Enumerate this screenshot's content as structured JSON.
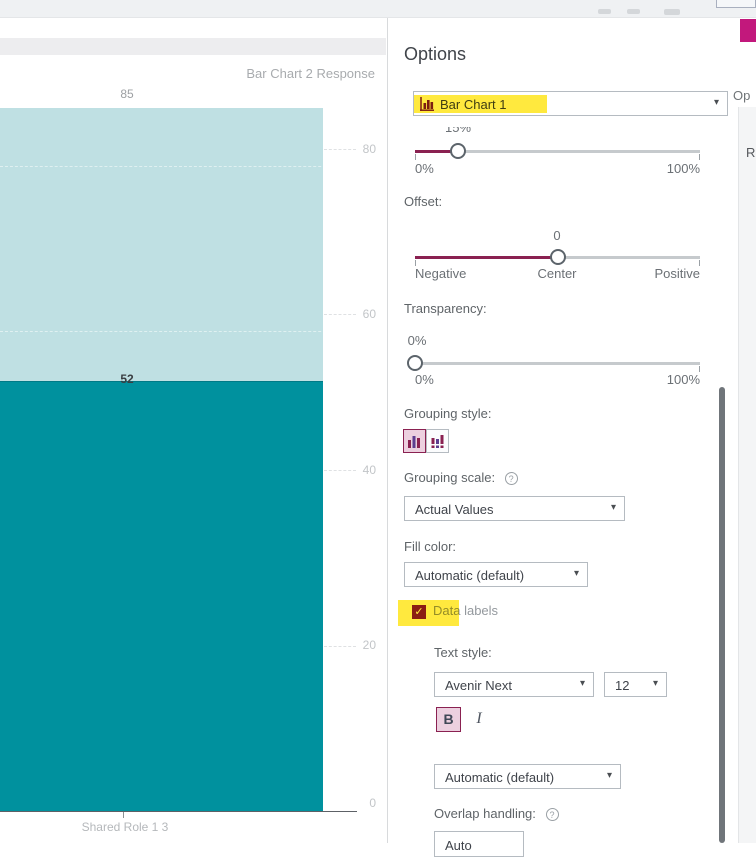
{
  "chart": {
    "response_label": "Bar Chart 2 Response",
    "back_bar_label": "85",
    "front_bar_label": "52",
    "category_label": "Shared Role 1 3",
    "y_ticks": [
      "80",
      "60",
      "40",
      "20",
      "0"
    ],
    "colors": {
      "back_bar": "#bfe0e3",
      "front_bar": "#00919e",
      "accent": "#8a2151",
      "highlight": "#ffe93e",
      "magenta": "#c2187c"
    }
  },
  "chart_data": {
    "type": "bar",
    "categories": [
      "Shared Role 1 3"
    ],
    "series": [
      {
        "name": "Bar Chart 2 Response",
        "values": [
          85
        ]
      },
      {
        "name": "Bar Chart 1",
        "values": [
          52
        ]
      }
    ],
    "title": "Bar Chart 2 Response",
    "xlabel": "Shared Role 1 3",
    "ylabel": "",
    "ylim": [
      0,
      85
    ],
    "y_tick_values": [
      0,
      20,
      40,
      60,
      80
    ],
    "grid": "dashed-horizontal",
    "legend_position": "none"
  },
  "options": {
    "title": "Options",
    "object_selector": {
      "label": "Bar Chart 1",
      "icon": "bar-chart-icon"
    },
    "opacity_slider": {
      "value_label": "15%",
      "min_label": "0%",
      "max_label": "100%",
      "percent": 15
    },
    "offset_slider": {
      "label": "Offset:",
      "value_label": "0",
      "min_label": "Negative",
      "mid_label": "Center",
      "max_label": "Positive",
      "percent": 50
    },
    "transparency_slider": {
      "label": "Transparency:",
      "value_label": "0%",
      "min_label": "0%",
      "max_label": "100%",
      "percent": 0
    },
    "grouping_style": {
      "label": "Grouping style:"
    },
    "grouping_scale": {
      "label": "Grouping scale:",
      "value": "Actual Values"
    },
    "fill_color": {
      "label": "Fill color:",
      "value": "Automatic (default)"
    },
    "data_labels": {
      "label": "Data labels",
      "checked": true,
      "checkmark": "✓"
    },
    "text_style": {
      "label": "Text style:",
      "font_value": "Avenir Next",
      "size_value": "12",
      "bold_label": "B",
      "italic_label": "I"
    },
    "label_color": {
      "value": "Automatic (default)"
    },
    "overlap": {
      "label": "Overlap handling:",
      "partial_value": "Auto"
    }
  },
  "right_strip": {
    "options_partial": "Op",
    "roles_partial": "R"
  },
  "icons": {
    "dropdown_arrow": "▾",
    "help": "?"
  }
}
